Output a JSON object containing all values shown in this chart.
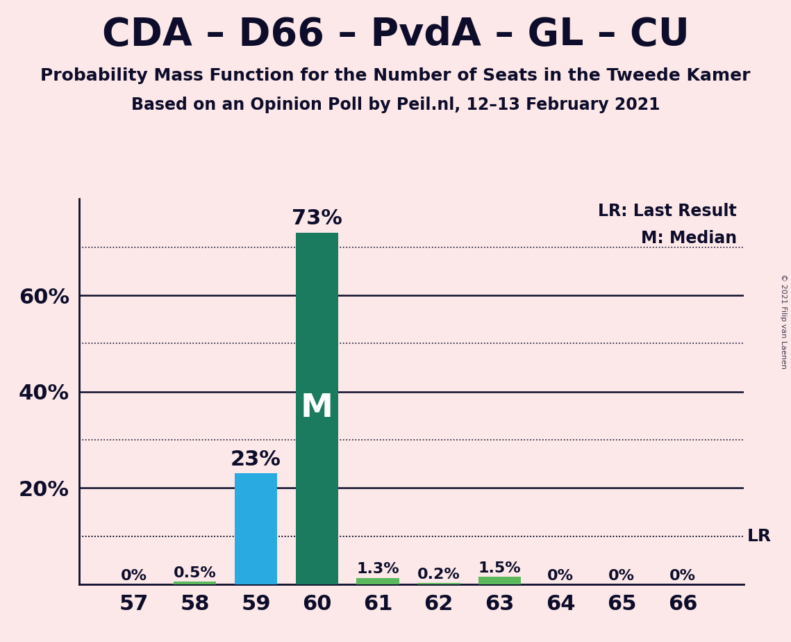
{
  "title": "CDA – D66 – PvdA – GL – CU",
  "subtitle1": "Probability Mass Function for the Number of Seats in the Tweede Kamer",
  "subtitle2": "Based on an Opinion Poll by Peil.nl, 12–13 February 2021",
  "copyright": "© 2021 Filip van Laenen",
  "seats": [
    57,
    58,
    59,
    60,
    61,
    62,
    63,
    64,
    65,
    66
  ],
  "values": [
    0.0,
    0.5,
    23.0,
    73.0,
    1.3,
    0.2,
    1.5,
    0.0,
    0.0,
    0.0
  ],
  "labels": [
    "0%",
    "0.5%",
    "23%",
    "73%",
    "1.3%",
    "0.2%",
    "1.5%",
    "0%",
    "0%",
    "0%"
  ],
  "bar_colors": [
    "#5cb85c",
    "#5cb85c",
    "#29ABE2",
    "#1A7B5E",
    "#5cb85c",
    "#5cb85c",
    "#5cb85c",
    "#5cb85c",
    "#5cb85c",
    "#5cb85c"
  ],
  "median_bar_idx": 3,
  "median_label": "M",
  "lr_value": 10.0,
  "lr_label": "LR",
  "background_color": "#fce8e8",
  "text_color": "#0d0d2b",
  "solid_lines": [
    20,
    40,
    60
  ],
  "dotted_lines": [
    10,
    30,
    50,
    70
  ],
  "ylim": [
    0,
    80
  ],
  "legend_lr": "LR: Last Result",
  "legend_m": "M: Median",
  "title_fontsize": 40,
  "subtitle1_fontsize": 18,
  "subtitle2_fontsize": 17,
  "tick_fontsize": 22,
  "label_fontsize_large": 22,
  "label_fontsize_small": 16,
  "median_fontsize": 34,
  "legend_fontsize": 17,
  "lr_fontsize": 18
}
